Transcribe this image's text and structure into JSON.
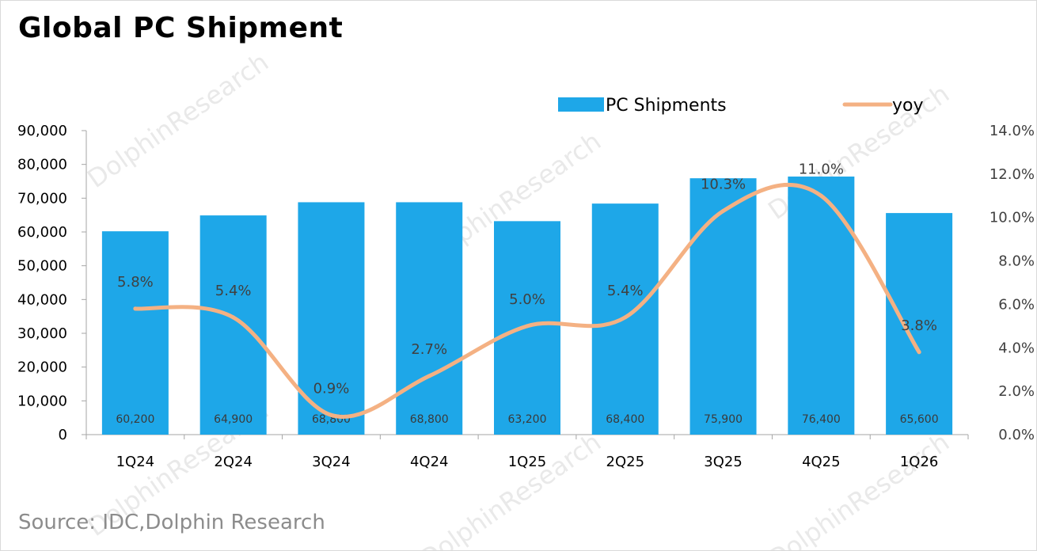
{
  "title": "Global PC Shipment",
  "source": "Source: IDC,Dolphin Research",
  "watermark": "DolphinResearch",
  "colors": {
    "bar": "#1ea7e8",
    "line": "#f4b183",
    "axis": "#a6a6a6"
  },
  "chart_data": {
    "type": "bar",
    "categories": [
      "1Q24",
      "2Q24",
      "3Q24",
      "4Q24",
      "1Q25",
      "2Q25",
      "3Q25",
      "4Q25",
      "1Q26"
    ],
    "series": [
      {
        "name": "PC Shipments",
        "type": "bar",
        "axis": "left",
        "values": [
          60200,
          64900,
          68800,
          68800,
          63200,
          68400,
          75900,
          76400,
          65600
        ],
        "labels": [
          "60,200",
          "64,900",
          "68,800",
          "68,800",
          "63,200",
          "68,400",
          "75,900",
          "76,400",
          "65,600"
        ]
      },
      {
        "name": "yoy",
        "type": "line",
        "axis": "right",
        "values": [
          5.8,
          5.4,
          0.9,
          2.7,
          5.0,
          5.4,
          10.3,
          11.0,
          3.8
        ],
        "labels": [
          "5.8%",
          "5.4%",
          "0.9%",
          "2.7%",
          "5.0%",
          "5.4%",
          "10.3%",
          "11.0%",
          "3.8%"
        ]
      }
    ],
    "y_left": {
      "min": 0,
      "max": 90000,
      "ticks": [
        0,
        10000,
        20000,
        30000,
        40000,
        50000,
        60000,
        70000,
        80000,
        90000
      ],
      "tick_labels": [
        "0",
        "10,000",
        "20,000",
        "30,000",
        "40,000",
        "50,000",
        "60,000",
        "70,000",
        "80,000",
        "90,000"
      ]
    },
    "y_right": {
      "min": 0,
      "max": 14,
      "ticks": [
        0,
        2,
        4,
        6,
        8,
        10,
        12,
        14
      ],
      "tick_labels": [
        "0.0%",
        "2.0%",
        "4.0%",
        "6.0%",
        "8.0%",
        "10.0%",
        "12.0%",
        "14.0%"
      ]
    },
    "legend_position": "top-right",
    "grid": false
  }
}
